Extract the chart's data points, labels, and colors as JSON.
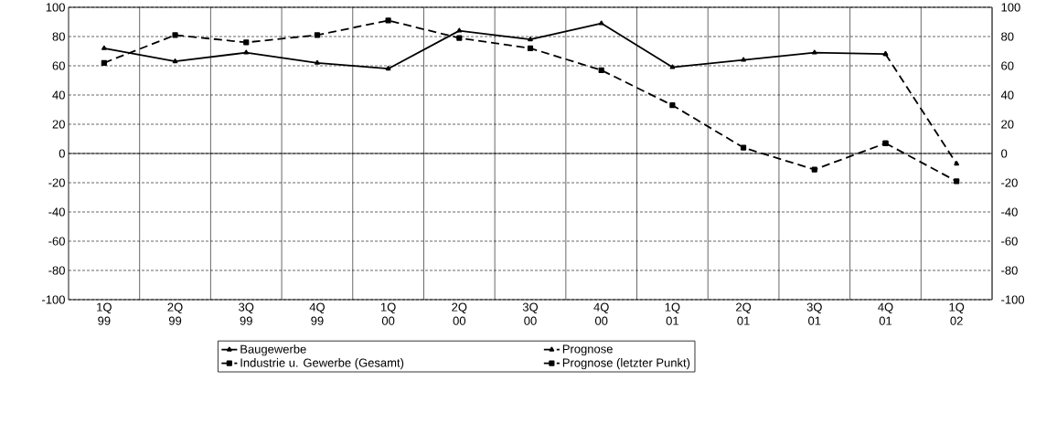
{
  "chart_data": {
    "type": "line",
    "categories": [
      "1Q 99",
      "2Q 99",
      "3Q 99",
      "4Q 99",
      "1Q 00",
      "2Q 00",
      "3Q 00",
      "4Q 00",
      "1Q 01",
      "2Q 01",
      "3Q 01",
      "4Q 01",
      "1Q 02"
    ],
    "series": [
      {
        "name": "Baugewerbe",
        "color": "#000000",
        "marker": "triangle",
        "line_style": "solid",
        "values": [
          72,
          63,
          69,
          62,
          58,
          84,
          78,
          89,
          59,
          64,
          69,
          68,
          null
        ]
      },
      {
        "name": "Prognose",
        "color": "#000000",
        "marker": "triangle",
        "line_style": "dashed",
        "values": [
          null,
          null,
          null,
          null,
          null,
          null,
          null,
          null,
          null,
          null,
          null,
          68,
          -7
        ]
      },
      {
        "name": "Industrie u. Gewerbe (Gesamt)",
        "color": "#000000",
        "marker": "square",
        "line_style": "dashed",
        "values": [
          62,
          81,
          76,
          81,
          91,
          79,
          72,
          57,
          33,
          4,
          -11,
          7,
          null
        ]
      },
      {
        "name": "Prognose (letzter Punkt)",
        "color": "#000000",
        "marker": "square",
        "line_style": "dashed",
        "values": [
          null,
          null,
          null,
          null,
          null,
          null,
          null,
          null,
          null,
          null,
          null,
          7,
          -19
        ]
      }
    ],
    "ylim": [
      -100,
      100
    ],
    "yticks": [
      -100,
      -80,
      -60,
      -40,
      -20,
      0,
      20,
      40,
      60,
      80,
      100
    ],
    "y2lim": [
      -100,
      100
    ],
    "y2ticks": [
      -100,
      -80,
      -60,
      -40,
      -20,
      0,
      20,
      40,
      60,
      80,
      100
    ],
    "grid": true,
    "legend": "bottom"
  }
}
